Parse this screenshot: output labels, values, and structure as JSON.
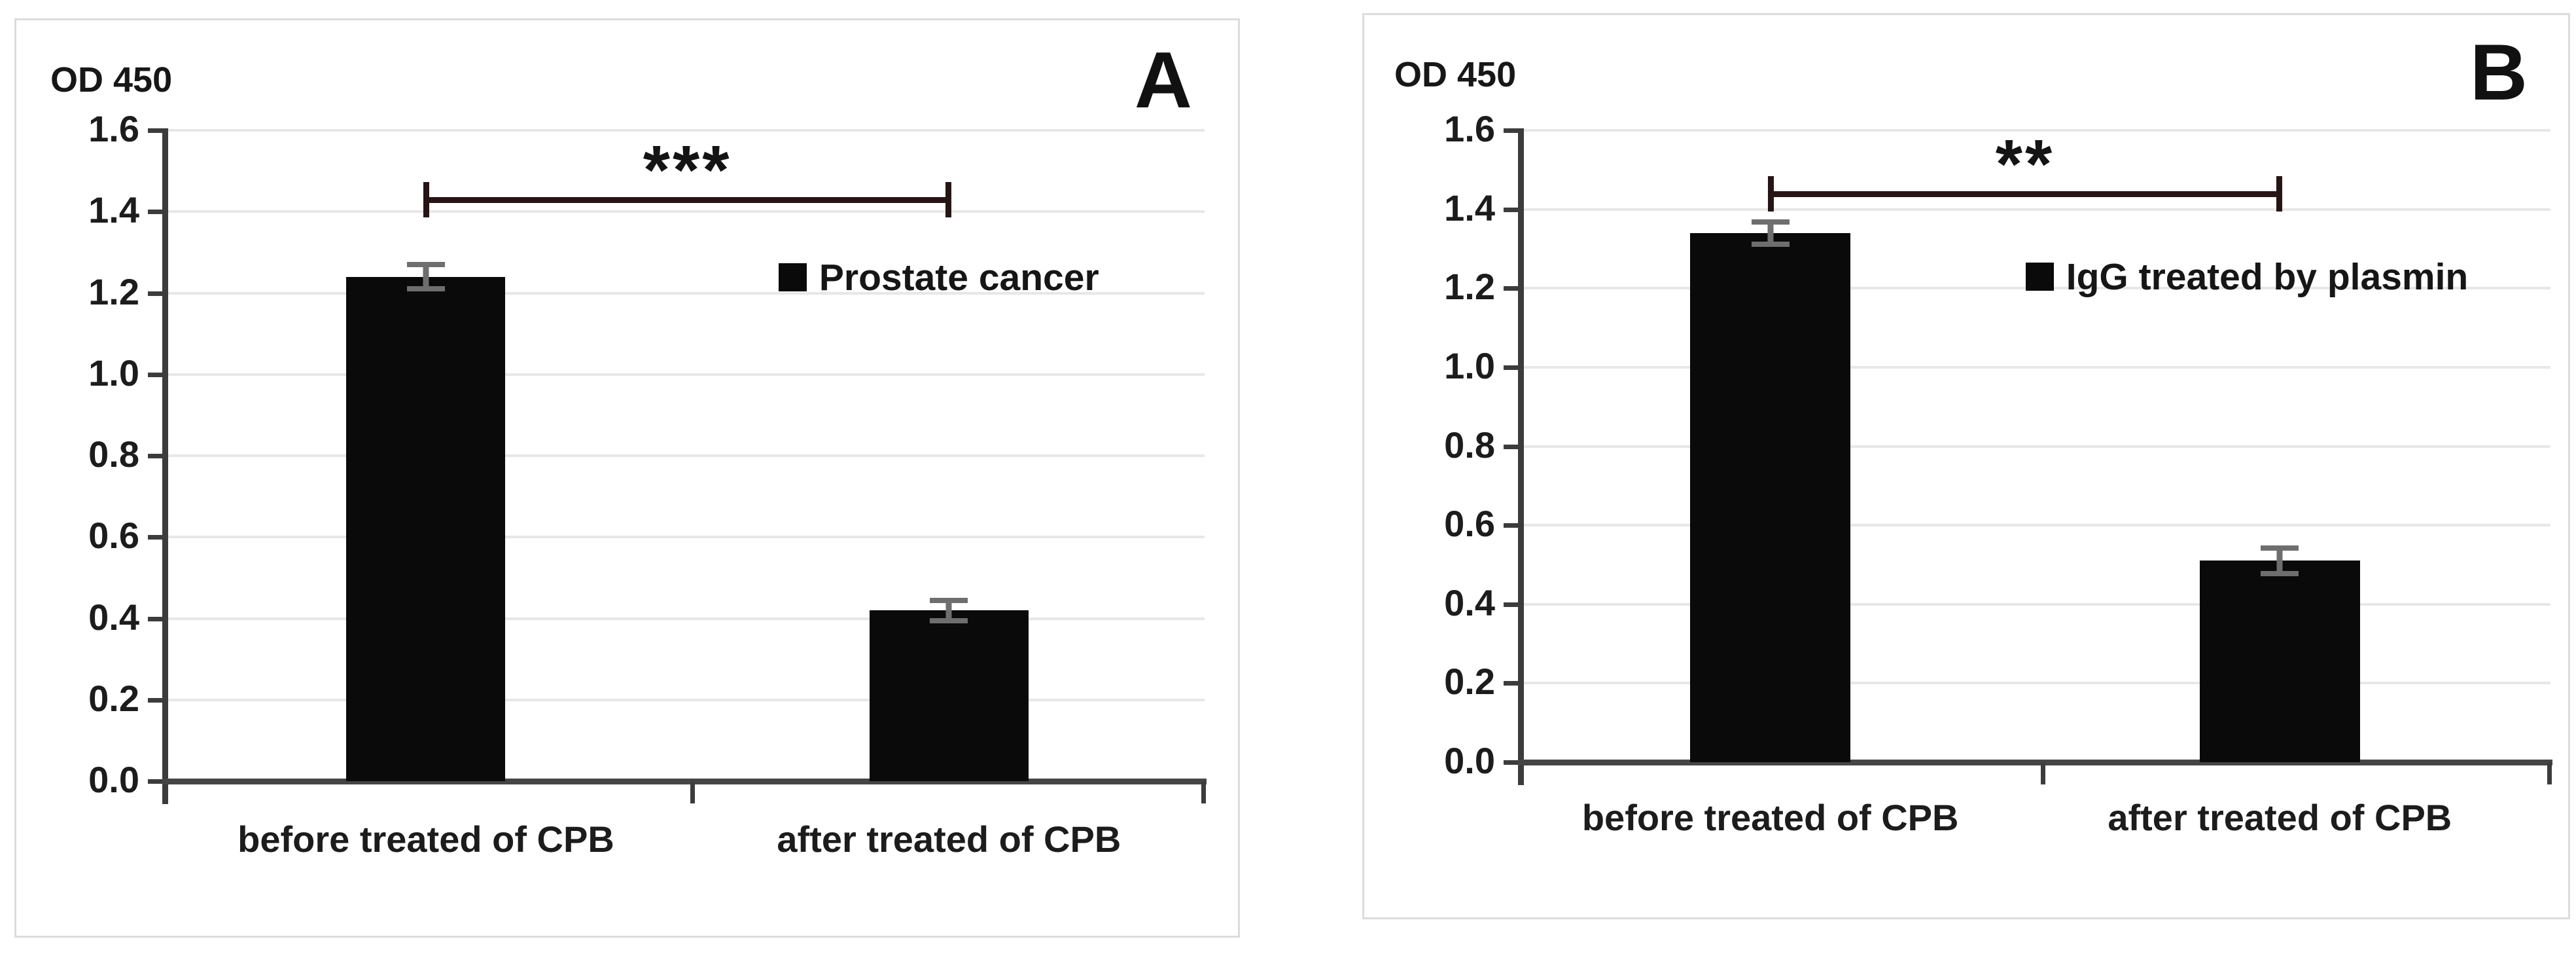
{
  "figure": {
    "background": "#ffffff",
    "panel_border_color": "#dcdcdc",
    "bar_color": "#0a0a0a",
    "gridline_color": "#e7e7e7",
    "axis_color": "#3c3c3c",
    "error_bar_color": "#6e6e6e",
    "bracket_color": "#261514",
    "text_color": "#1a1a1a"
  },
  "chart_data": [
    {
      "type": "bar",
      "panel_label": "A",
      "ylabel": "OD 450",
      "categories": [
        "before treated of CPB",
        "after treated of CPB"
      ],
      "values": [
        1.24,
        0.42
      ],
      "errors": [
        0.03,
        0.025
      ],
      "legend_entries": [
        "Prostate cancer"
      ],
      "significance": {
        "text": "***",
        "level": 1.43,
        "between": [
          "before treated of CPB",
          "after treated of CPB"
        ]
      },
      "ylim": [
        0,
        1.6
      ],
      "ytick_labels": [
        "0.0",
        "0.2",
        "0.4",
        "0.6",
        "0.8",
        "1.0",
        "1.2",
        "1.4",
        "1.6"
      ],
      "grid": true,
      "legend_position": "inside-right"
    },
    {
      "type": "bar",
      "panel_label": "B",
      "ylabel": "OD 450",
      "categories": [
        "before treated of CPB",
        "after treated of CPB"
      ],
      "values": [
        1.34,
        0.51
      ],
      "errors": [
        0.028,
        0.032
      ],
      "legend_entries": [
        "IgG treated by plasmin"
      ],
      "significance": {
        "text": "**",
        "level": 1.44,
        "between": [
          "before treated of CPB",
          "after treated of CPB"
        ]
      },
      "ylim": [
        0,
        1.6
      ],
      "ytick_labels": [
        "0.0",
        "0.2",
        "0.4",
        "0.6",
        "0.8",
        "1.0",
        "1.2",
        "1.4",
        "1.6"
      ],
      "grid": true,
      "legend_position": "inside-right"
    }
  ]
}
